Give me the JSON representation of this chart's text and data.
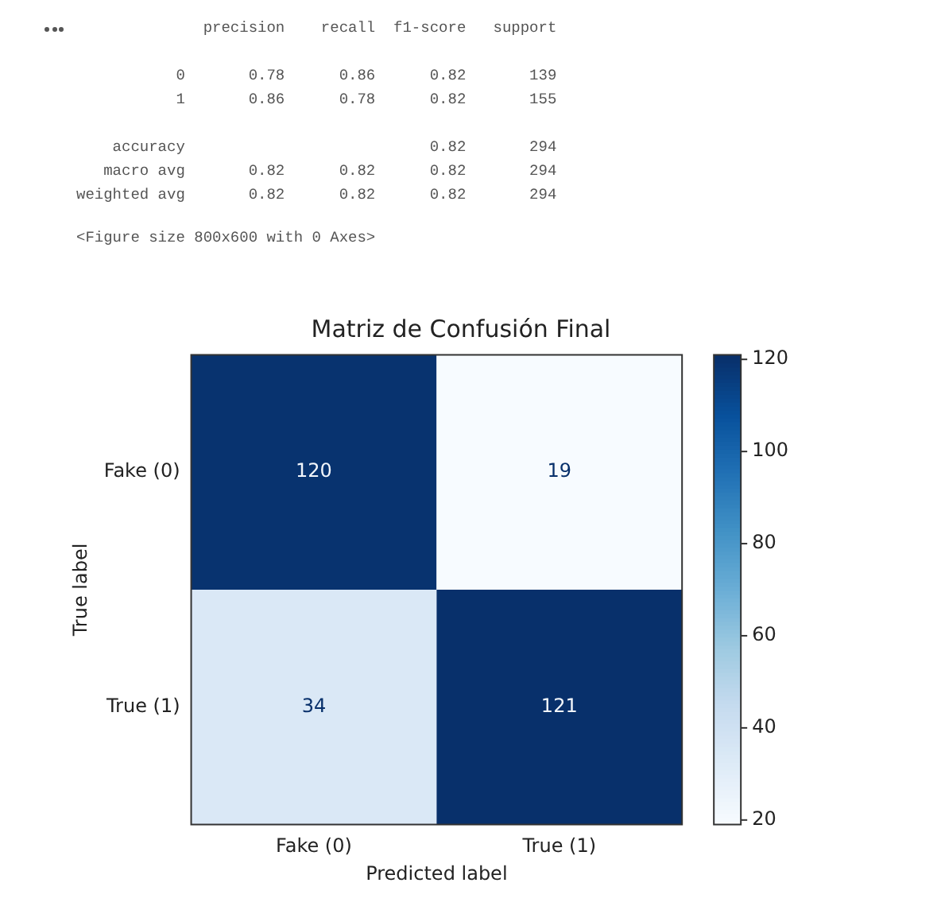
{
  "chart_data": {
    "type": "heatmap",
    "title": "Matriz de Confusión Final",
    "xlabel": "Predicted label",
    "ylabel": "True label",
    "categories": [
      "Fake (0)",
      "True (1)"
    ],
    "y_categories": [
      "Fake (0)",
      "True (1)"
    ],
    "cells": [
      [
        120,
        19
      ],
      [
        34,
        121
      ]
    ],
    "data_labels": true,
    "clim": [
      19,
      121
    ],
    "cticks": [
      20,
      40,
      60,
      80,
      100,
      120
    ],
    "annotations": [
      "              precision    recall  f1-score   support\n\n           0       0.78      0.86      0.82       139\n           1       0.86      0.78      0.82       155\n\n    accuracy                           0.82       294\n   macro avg       0.82      0.82      0.82       294\nweighted avg       0.82      0.82      0.82       294",
      "<Figure size 800x600 with 0 Axes>"
    ]
  }
}
